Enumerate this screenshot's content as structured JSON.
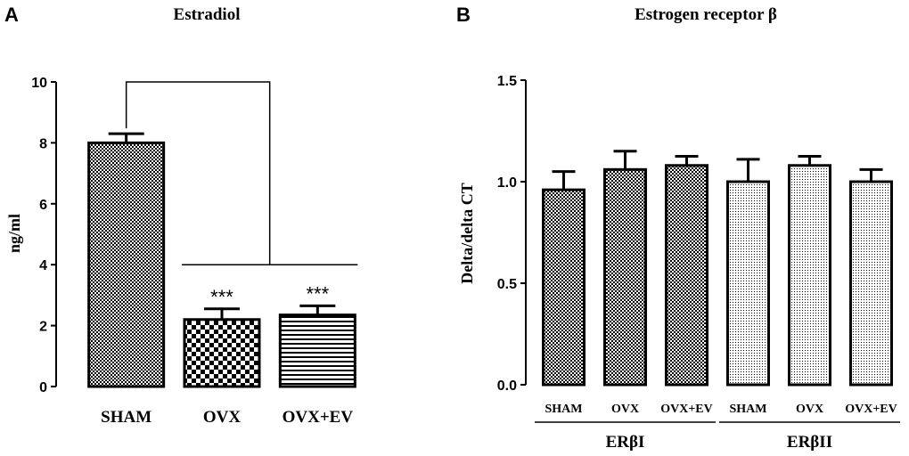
{
  "panels": {
    "a_letter": "A",
    "b_letter": "B"
  },
  "chart_data": [
    {
      "type": "bar",
      "title": "Estradiol",
      "xlabel": "",
      "ylabel": "ng/ml",
      "ylim": [
        0,
        10
      ],
      "yticks": [
        "0",
        "2",
        "4",
        "6",
        "8",
        "10"
      ],
      "categories": [
        "SHAM",
        "OVX",
        "OVX+EV"
      ],
      "values": [
        8.0,
        2.2,
        2.35
      ],
      "errors": [
        0.3,
        0.35,
        0.3
      ],
      "patterns": [
        "checker-fine",
        "checker",
        "stripes"
      ],
      "annotations": [
        "",
        "***",
        "***"
      ],
      "comparison": "SHAM vs OVX, OVX+EV"
    },
    {
      "type": "bar",
      "title": "Estrogen receptor β",
      "xlabel": "",
      "ylabel": "Delta/delta CT",
      "ylim": [
        0,
        1.5
      ],
      "yticks": [
        "0.0",
        "0.5",
        "1.0",
        "1.5"
      ],
      "categories": [
        "SHAM",
        "OVX",
        "OVX+EV",
        "SHAM",
        "OVX",
        "OVX+EV"
      ],
      "groups": [
        {
          "name": "ERβI",
          "indices": [
            0,
            1,
            2
          ]
        },
        {
          "name": "ERβII",
          "indices": [
            3,
            4,
            5
          ]
        }
      ],
      "values": [
        0.96,
        1.06,
        1.08,
        1.0,
        1.08,
        1.0
      ],
      "errors": [
        0.09,
        0.09,
        0.045,
        0.11,
        0.045,
        0.06
      ],
      "patterns": [
        "checker-fine",
        "checker-fine",
        "checker-fine",
        "dots",
        "dots",
        "dots"
      ]
    }
  ]
}
